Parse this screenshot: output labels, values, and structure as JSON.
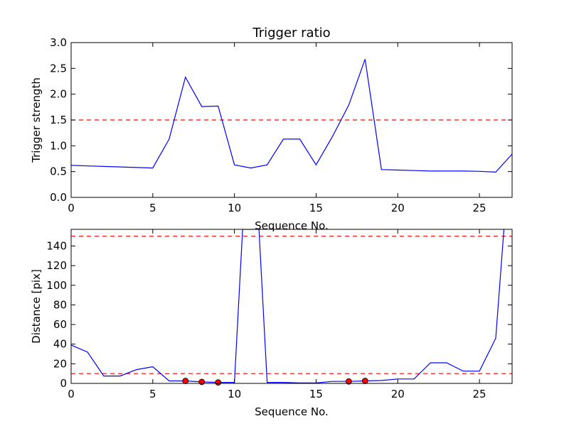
{
  "chart_data": [
    {
      "type": "line",
      "title": "Trigger ratio",
      "xlabel": "Sequence No.",
      "ylabel": "Trigger strength",
      "xlim": [
        0,
        27
      ],
      "ylim": [
        0,
        3.0
      ],
      "xticks": [
        "0",
        "5",
        "10",
        "15",
        "20",
        "25"
      ],
      "xtick_values": [
        0,
        5,
        10,
        15,
        20,
        25
      ],
      "yticks": [
        "0.0",
        "0.5",
        "1.0",
        "1.5",
        "2.0",
        "2.5",
        "3.0"
      ],
      "ytick_values": [
        0,
        0.5,
        1.0,
        1.5,
        2.0,
        2.5,
        3.0
      ],
      "grid": false,
      "series": [
        {
          "color": "#0000ff",
          "style": "solid",
          "x": [
            0,
            1,
            2,
            3,
            4,
            5,
            6,
            7,
            8,
            9,
            10,
            11,
            12,
            13,
            14,
            15,
            16,
            17,
            18,
            19,
            20,
            21,
            22,
            23,
            24,
            25,
            26,
            27
          ],
          "y": [
            0.62,
            0.61,
            0.6,
            0.59,
            0.58,
            0.57,
            1.13,
            2.33,
            1.76,
            1.77,
            0.63,
            0.57,
            0.63,
            1.13,
            1.13,
            0.63,
            1.18,
            1.79,
            2.68,
            0.54,
            0.53,
            0.52,
            0.51,
            0.51,
            0.51,
            0.505,
            0.49,
            0.84
          ]
        }
      ],
      "threshold_lines": [
        {
          "y": 1.5,
          "color": "#ff0000",
          "style": "dashed"
        }
      ]
    },
    {
      "type": "line",
      "title": "",
      "xlabel": "Sequence No.",
      "ylabel": "Distance [pix]",
      "xlim": [
        0,
        27
      ],
      "ylim": [
        0,
        157
      ],
      "xticks": [
        "0",
        "5",
        "10",
        "15",
        "20",
        "25"
      ],
      "xtick_values": [
        0,
        5,
        10,
        15,
        20,
        25
      ],
      "yticks": [
        "0",
        "20",
        "40",
        "60",
        "80",
        "100",
        "120",
        "140"
      ],
      "ytick_values": [
        0,
        20,
        40,
        60,
        80,
        100,
        120,
        140
      ],
      "grid": false,
      "series": [
        {
          "color": "#0000ff",
          "style": "solid",
          "x": [
            0,
            1,
            2,
            3,
            4,
            5,
            6,
            7,
            8,
            9,
            10,
            10.5,
            11.5,
            12,
            13,
            14,
            15,
            16,
            17,
            18,
            19,
            20,
            21,
            22,
            23,
            24,
            25,
            26,
            26.5
          ],
          "y": [
            39,
            32,
            7.5,
            7.5,
            14,
            17,
            2.5,
            2.5,
            1.5,
            1,
            1,
            157,
            157,
            1,
            1,
            0.5,
            0.5,
            2,
            2,
            2.5,
            3,
            4.5,
            4.5,
            21,
            21,
            12.5,
            12.5,
            46,
            157
          ]
        }
      ],
      "markers": {
        "color": "#ff0000",
        "x": [
          7,
          8,
          9,
          17,
          18
        ],
        "y": [
          2.5,
          1.5,
          1,
          2,
          2.5
        ]
      },
      "threshold_lines": [
        {
          "y": 150,
          "color": "#ff0000",
          "style": "dashed"
        },
        {
          "y": 10,
          "color": "#ff0000",
          "style": "dashed"
        }
      ]
    }
  ]
}
